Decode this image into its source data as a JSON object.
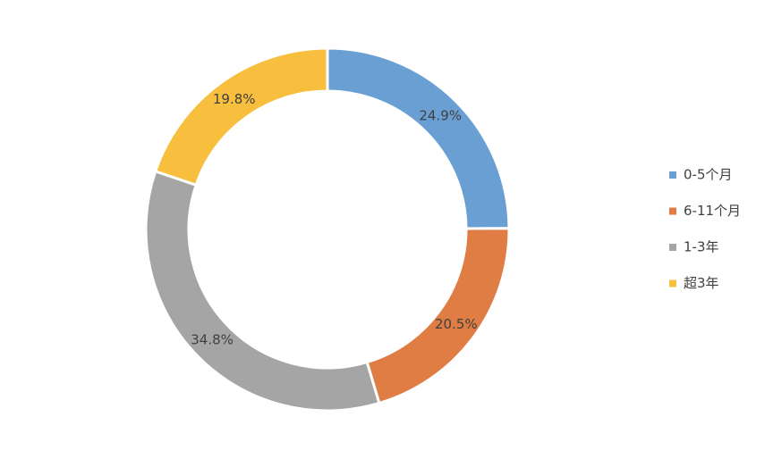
{
  "chart_data": {
    "type": "pie",
    "categories": [
      "0-5个月",
      "6-11个月",
      "1-3年",
      "超3年"
    ],
    "values": [
      24.9,
      20.5,
      34.8,
      19.8
    ],
    "value_labels": [
      "24.9%",
      "20.5%",
      "34.8%",
      "19.8%"
    ],
    "colors": [
      "#6a9fd4",
      "#e07d44",
      "#a5a5a5",
      "#f8bf3f"
    ],
    "legend": "right"
  }
}
